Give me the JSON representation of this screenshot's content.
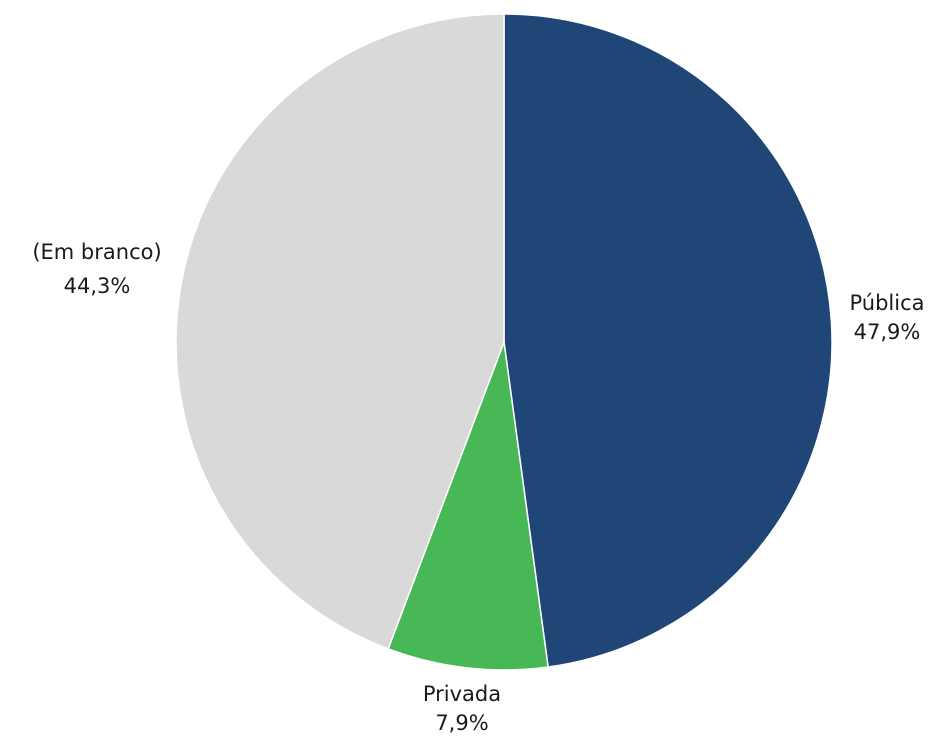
{
  "chart_data": {
    "type": "pie",
    "title": "",
    "start": "12 o'clock",
    "direction": "clockwise",
    "slices": [
      {
        "name": "Pública",
        "value": 47.9,
        "label": "47,9%",
        "color": "#1f4677"
      },
      {
        "name": "Privada",
        "value": 7.9,
        "label": "7,9%",
        "color": "#47b855"
      },
      {
        "name": "(Em branco)",
        "value": 44.3,
        "label": "44,3%",
        "color": "#d9d9d9"
      }
    ]
  }
}
